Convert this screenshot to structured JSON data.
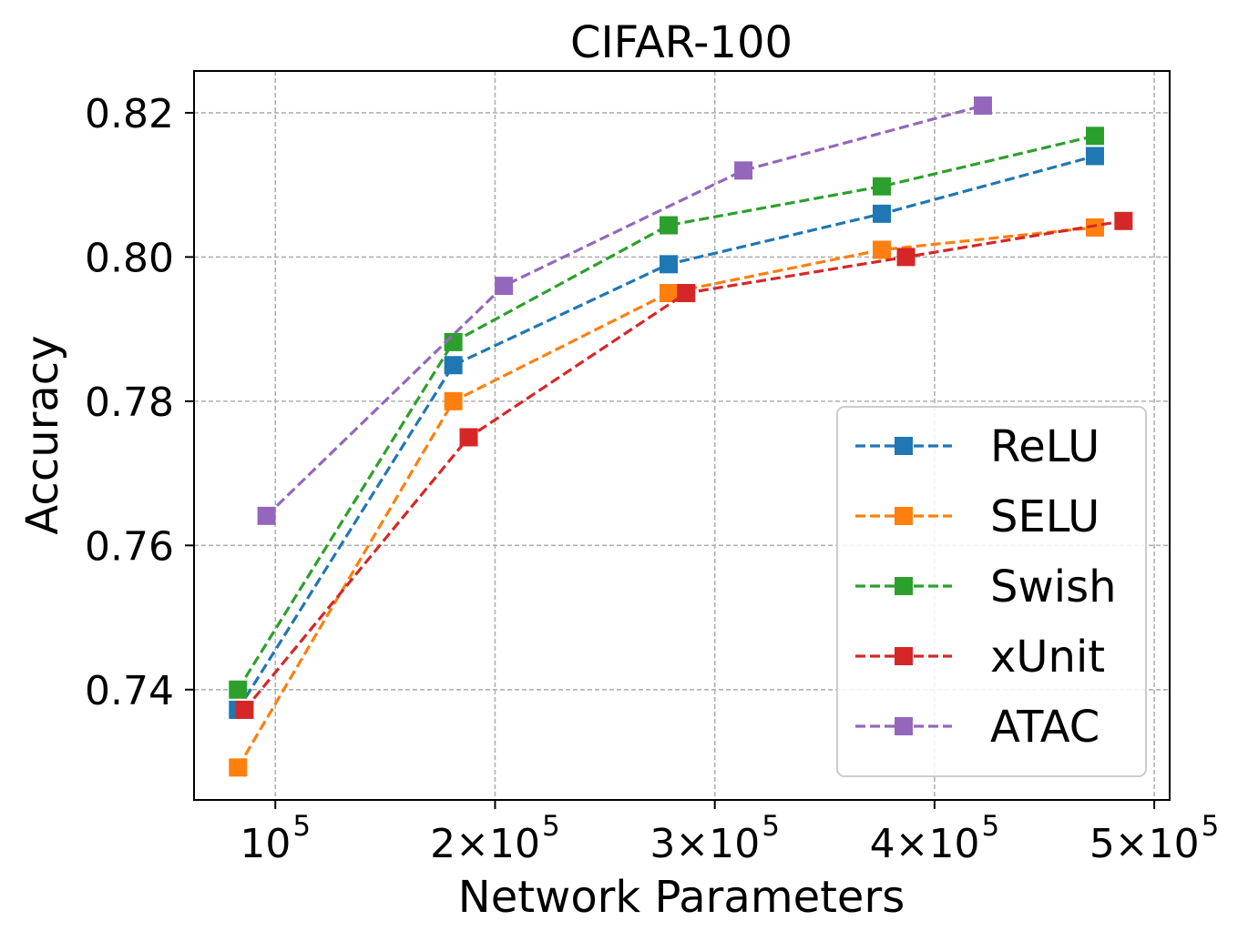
{
  "chart_data": {
    "type": "line",
    "title": "CIFAR-100",
    "xlabel": "Network Parameters",
    "ylabel": "Accuracy",
    "xlim": [
      63000,
      507000
    ],
    "ylim": [
      0.7247,
      0.8258
    ],
    "xticks": [
      {
        "value": 100000,
        "base": "10",
        "exp": "5"
      },
      {
        "value": 200000,
        "base": "2×10",
        "exp": "5"
      },
      {
        "value": 300000,
        "base": "3×10",
        "exp": "5"
      },
      {
        "value": 400000,
        "base": "4×10",
        "exp": "5"
      },
      {
        "value": 500000,
        "base": "5×10",
        "exp": "5"
      }
    ],
    "yticks": [
      {
        "value": 0.74,
        "label": "0.74"
      },
      {
        "value": 0.76,
        "label": "0.76"
      },
      {
        "value": 0.78,
        "label": "0.78"
      },
      {
        "value": 0.8,
        "label": "0.80"
      },
      {
        "value": 0.82,
        "label": "0.82"
      }
    ],
    "grid": true,
    "legend_position": "lower-right",
    "series": [
      {
        "name": "ReLU",
        "color": "#1f77b4",
        "marker": "square",
        "linestyle": "dashed",
        "x": [
          83000,
          181000,
          279000,
          376000,
          473000
        ],
        "y": [
          0.7372,
          0.785,
          0.799,
          0.806,
          0.814
        ]
      },
      {
        "name": "SELU",
        "color": "#ff7f0e",
        "marker": "square",
        "linestyle": "dashed",
        "x": [
          83000,
          181000,
          279000,
          376000,
          473000
        ],
        "y": [
          0.7292,
          0.78,
          0.795,
          0.801,
          0.8041
        ]
      },
      {
        "name": "Swish",
        "color": "#2ca02c",
        "marker": "square",
        "linestyle": "dashed",
        "x": [
          83000,
          181000,
          279000,
          376000,
          473000
        ],
        "y": [
          0.74,
          0.7882,
          0.8044,
          0.8098,
          0.8168
        ]
      },
      {
        "name": "xUnit",
        "color": "#d62728",
        "marker": "square",
        "linestyle": "dashed",
        "x": [
          86000,
          188000,
          287000,
          387000,
          486000
        ],
        "y": [
          0.7372,
          0.775,
          0.795,
          0.8,
          0.805
        ]
      },
      {
        "name": "ATAC",
        "color": "#9467bd",
        "marker": "square",
        "linestyle": "dashed",
        "x": [
          96000,
          204000,
          313000,
          422000
        ],
        "y": [
          0.7641,
          0.796,
          0.812,
          0.821
        ]
      }
    ]
  }
}
